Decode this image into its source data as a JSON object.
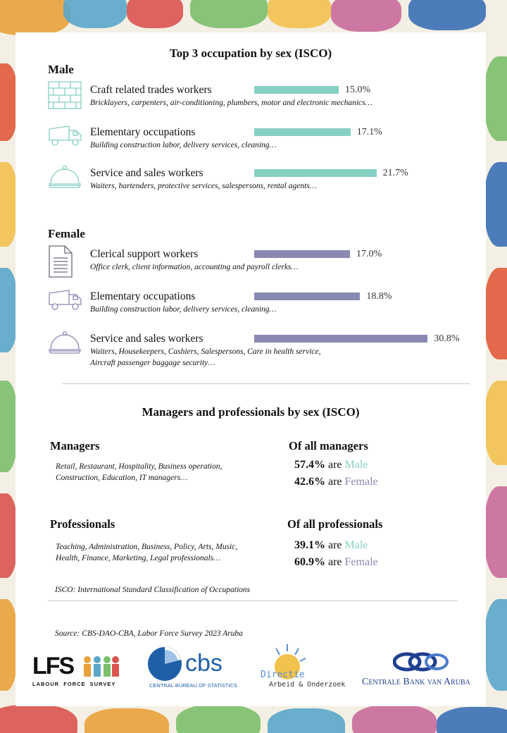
{
  "colors": {
    "male": "#86cfc3",
    "female": "#8a89b4",
    "male_text": "#86cfc3",
    "female_text": "#8a89b4"
  },
  "header": {
    "title": "Top 3 occupation by sex (ISCO)"
  },
  "chart_data": {
    "type": "bar",
    "title": "Top 3 occupation by sex (ISCO)",
    "xlim": [
      0,
      35
    ],
    "groups": [
      {
        "name": "Male",
        "color": "#86cfc3",
        "items": [
          {
            "icon": "brick-wall-icon",
            "label": "Craft related trades workers",
            "description": "Bricklayers, carpenters, air-conditioning, plumbers, motor and electronic mechanics…",
            "value": 15.0,
            "value_label": "15.0%"
          },
          {
            "icon": "truck-icon",
            "label": "Elementary occupations",
            "description": "Building construction labor, delivery services, cleaning…",
            "value": 17.1,
            "value_label": "17.1%"
          },
          {
            "icon": "food-cloche-icon",
            "label": "Service and sales workers",
            "description": "Waiters, bartenders, protective services, salespersons, rental agents…",
            "value": 21.7,
            "value_label": "21.7%"
          }
        ]
      },
      {
        "name": "Female",
        "color": "#8a89b4",
        "items": [
          {
            "icon": "document-icon",
            "label": "Clerical support workers",
            "description": "Office clerk, client information, accounting and payroll clerks…",
            "value": 17.0,
            "value_label": "17.0%"
          },
          {
            "icon": "truck-icon",
            "label": "Elementary occupations",
            "description": "Building construction labor, delivery services, cleaning…",
            "value": 18.8,
            "value_label": "18.8%"
          },
          {
            "icon": "food-cloche-icon",
            "label": "Service and sales workers",
            "description": "Waiters, Housekeepers, Cashiers, Salespersons, Care in health service,",
            "description2": "Aircraft passenger baggage security…",
            "value": 30.8,
            "value_label": "30.8%"
          }
        ]
      }
    ]
  },
  "managers_section": {
    "title": "Managers and professionals by sex (ISCO)",
    "managers": {
      "label": "Managers",
      "desc1": "Retail, Restaurant, Hospitality, Business operation,",
      "desc2": "Construction, Education, IT managers…",
      "of_all": "Of all managers",
      "male_pct": "57.4%",
      "female_pct": "42.6%"
    },
    "professionals": {
      "label": "Professionals",
      "desc1": "Teaching, Administration, Business, Policy, Arts, Music,",
      "desc2": "Health, Finance, Marketing, Legal professionals…",
      "of_all": "Of all professionals",
      "male_pct": "39.1%",
      "female_pct": "60.9%"
    },
    "are": "are",
    "male_word": "Male",
    "female_word": "Female"
  },
  "footnote": "ISCO: International Standard Classification of  Occupations",
  "source": "Source: CBS-DAO-CBA, Labor Force Survey 2023 Aruba",
  "logos": {
    "lfs_main": "LFS",
    "lfs_sub": "LABOUR  FORCE  SURVEY",
    "cbs_main": "cbs",
    "cbs_sub": "CENTRAL BUREAU OF STATISTICS",
    "dao_main": "Directie",
    "dao_sub": "Arbeid & Onderzoek",
    "cba_main": "Centrale Bank van Aruba"
  }
}
